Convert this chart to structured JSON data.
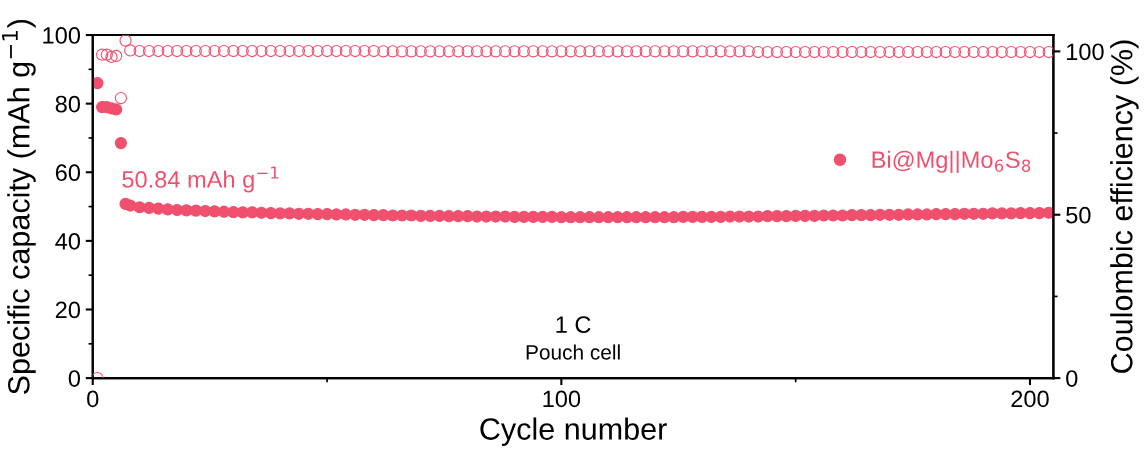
{
  "chart_data": {
    "type": "scatter",
    "xlabel": "Cycle number",
    "ylabel": "Specific capacity (mAh g$^{−1}$)",
    "y2label": "Coulombic efficiency (%)",
    "x": [
      1,
      2,
      3,
      4,
      5,
      6,
      7,
      8,
      10,
      12,
      14,
      16,
      18,
      20,
      22,
      24,
      26,
      28,
      30,
      32,
      34,
      36,
      38,
      40,
      42,
      44,
      46,
      48,
      50,
      52,
      54,
      56,
      58,
      60,
      62,
      64,
      66,
      68,
      70,
      72,
      74,
      76,
      78,
      80,
      82,
      84,
      86,
      88,
      90,
      92,
      94,
      96,
      98,
      100,
      102,
      104,
      106,
      108,
      110,
      112,
      114,
      116,
      118,
      120,
      122,
      124,
      126,
      128,
      130,
      132,
      134,
      136,
      138,
      140,
      142,
      144,
      146,
      148,
      150,
      152,
      154,
      156,
      158,
      160,
      162,
      164,
      166,
      168,
      170,
      172,
      174,
      176,
      178,
      180,
      182,
      184,
      186,
      188,
      190,
      192,
      194,
      196,
      198,
      200,
      202,
      204
    ],
    "series": [
      {
        "name": "Bi@Mg||Mo$_{6}$S$_{8}$",
        "color": "#f0506e",
        "marker": "circle",
        "values": [
          86,
          79,
          79,
          78.6,
          78.3,
          68.5,
          50.8,
          50.3,
          49.8,
          49.6,
          49.4,
          49.2,
          49.0,
          48.9,
          48.8,
          48.7,
          48.6,
          48.5,
          48.4,
          48.3,
          48.3,
          48.2,
          48.1,
          48.0,
          48.0,
          47.9,
          47.9,
          47.8,
          47.8,
          47.7,
          47.7,
          47.6,
          47.6,
          47.5,
          47.5,
          47.4,
          47.4,
          47.4,
          47.3,
          47.3,
          47.3,
          47.2,
          47.2,
          47.2,
          47.1,
          47.1,
          47.1,
          47.1,
          47.0,
          47.0,
          47.0,
          47.0,
          47.0,
          46.9,
          46.9,
          46.9,
          46.9,
          46.9,
          46.9,
          46.9,
          46.9,
          46.9,
          46.9,
          46.9,
          46.9,
          46.9,
          47.0,
          47.0,
          47.0,
          47.0,
          47.0,
          47.1,
          47.1,
          47.1,
          47.1,
          47.2,
          47.2,
          47.2,
          47.3,
          47.3,
          47.3,
          47.4,
          47.4,
          47.4,
          47.5,
          47.5,
          47.5,
          47.6,
          47.6,
          47.6,
          47.7,
          47.7,
          47.7,
          47.8,
          47.8,
          47.8,
          47.9,
          47.9,
          47.9,
          48.0,
          48.0,
          48.0,
          48.1,
          48.1,
          48.1,
          48.2
        ]
      },
      {
        "axis": "y2",
        "color": "#f0506e",
        "marker": "circle",
        "values": [
          0,
          99.0,
          99.0,
          98.3,
          98.6,
          85.7,
          103.3,
          100.3,
          100.1,
          100.1,
          100.1,
          100.1,
          100.1,
          100.1,
          100.1,
          100.1,
          100.1,
          100.1,
          100.1,
          100.1,
          100.1,
          100.1,
          100.1,
          100.1,
          100.1,
          100.1,
          100.1,
          100.1,
          100.1,
          100.1,
          100.1,
          100.1,
          100.1,
          100.1,
          100.0,
          100.0,
          100.0,
          100.0,
          100.0,
          100.0,
          100.0,
          100.0,
          100.0,
          100.0,
          100.0,
          100.0,
          100.0,
          100.0,
          100.0,
          100.0,
          100.0,
          100.0,
          100.0,
          100.0,
          100.0,
          100.0,
          100.0,
          100.0,
          100.0,
          100.0,
          100.0,
          100.0,
          100.0,
          100.0,
          100.0,
          100.0,
          100.0,
          100.0,
          100.0,
          100.0,
          100.0,
          100.0,
          100.0,
          100.0,
          99.8,
          99.8,
          99.8,
          99.8,
          99.8,
          99.8,
          99.8,
          99.8,
          99.8,
          99.8,
          99.8,
          99.8,
          99.8,
          99.8,
          99.8,
          99.8,
          99.8,
          99.8,
          99.8,
          99.8,
          99.8,
          99.8,
          99.8,
          99.8,
          99.8,
          99.8,
          99.8,
          99.8,
          99.8,
          99.8,
          99.8,
          99.8
        ]
      }
    ],
    "xlim": [
      0,
      205
    ],
    "xticks": [
      0,
      100,
      200
    ],
    "ylim": [
      0,
      100
    ],
    "yticks": [
      0,
      20,
      40,
      60,
      80,
      100
    ],
    "y2lim": [
      0,
      105
    ],
    "y2ticks": [
      0,
      50,
      100
    ],
    "annotations": [
      {
        "text": "50.84 mAh g$^{−1}$",
        "x": 7,
        "y": 50.8
      },
      "1 C",
      "Pouch cell"
    ],
    "legend": "right",
    "grid": false
  }
}
